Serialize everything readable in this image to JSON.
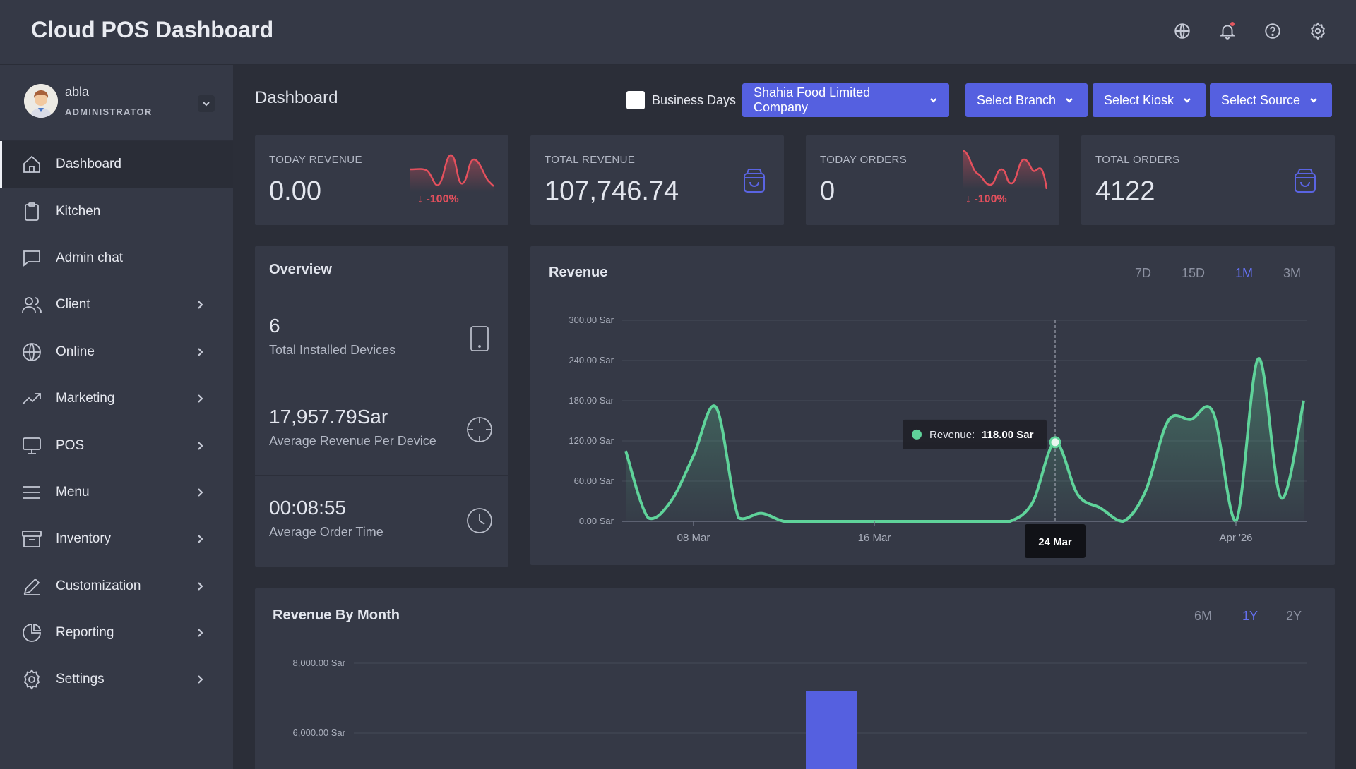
{
  "app": {
    "title": "Cloud POS Dashboard"
  },
  "top_icons": [
    "globe-icon",
    "bell-icon",
    "help-icon",
    "gear-icon"
  ],
  "user": {
    "name": "abla",
    "role": "ADMINISTRATOR"
  },
  "nav": [
    {
      "label": "Dashboard",
      "icon": "home-icon",
      "chevron": false,
      "active": true
    },
    {
      "label": "Kitchen",
      "icon": "clipboard-icon",
      "chevron": false
    },
    {
      "label": "Admin chat",
      "icon": "chat-icon",
      "chevron": false
    },
    {
      "label": "Client",
      "icon": "users-icon",
      "chevron": true
    },
    {
      "label": "Online",
      "icon": "globe-icon",
      "chevron": true
    },
    {
      "label": "Marketing",
      "icon": "trending-up-icon",
      "chevron": true
    },
    {
      "label": "POS",
      "icon": "monitor-icon",
      "chevron": true
    },
    {
      "label": "Menu",
      "icon": "menu-icon",
      "chevron": true
    },
    {
      "label": "Inventory",
      "icon": "archive-icon",
      "chevron": true
    },
    {
      "label": "Customization",
      "icon": "pen-icon",
      "chevron": true
    },
    {
      "label": "Reporting",
      "icon": "pie-chart-icon",
      "chevron": true
    },
    {
      "label": "Settings",
      "icon": "gear-icon",
      "chevron": true
    }
  ],
  "page": {
    "title": "Dashboard"
  },
  "filters": {
    "business_days": "Business Days",
    "company": "Shahia Food Limited Company",
    "branch": "Select Branch",
    "kiosk": "Select Kiosk",
    "source": "Select Source"
  },
  "stats": {
    "today_revenue": {
      "label": "TODAY REVENUE",
      "value": "0.00",
      "change": "-100%"
    },
    "total_revenue": {
      "label": "TOTAL REVENUE",
      "value": "107,746.74"
    },
    "today_orders": {
      "label": "TODAY ORDERS",
      "value": "0",
      "change": "-100%"
    },
    "total_orders": {
      "label": "TOTAL ORDERS",
      "value": "4122"
    }
  },
  "colors": {
    "accent": "#5560e0",
    "active_range": "#6470f0",
    "negative": "#e4505d",
    "revenue_line": "#5fd39a",
    "bar": "#5560e0"
  },
  "overview": {
    "title": "Overview",
    "rows": [
      {
        "value": "6",
        "label": "Total Installed Devices",
        "icon": "tablet-icon"
      },
      {
        "value": "17,957.79Sar",
        "label": "Average Revenue Per Device",
        "icon": "crosshair-icon"
      },
      {
        "value": "00:08:55",
        "label": "Average Order Time",
        "icon": "clock-icon"
      }
    ]
  },
  "revenue_chart": {
    "title": "Revenue",
    "ranges": [
      "7D",
      "15D",
      "1M",
      "3M"
    ],
    "active_range": "1M",
    "tooltip": {
      "label": "Revenue:",
      "value": "118.00 Sar",
      "x_label": "24 Mar"
    }
  },
  "month_chart": {
    "title": "Revenue By Month",
    "ranges": [
      "6M",
      "1Y",
      "2Y"
    ],
    "active_range": "1Y"
  },
  "chart_data": [
    {
      "type": "area",
      "title": "Revenue",
      "x_ticks": [
        "08 Mar",
        "16 Mar",
        "Apr '26"
      ],
      "y_ticks": [
        "0.00 Sar",
        "60.00 Sar",
        "120.00 Sar",
        "180.00 Sar",
        "240.00 Sar",
        "300.00 Sar"
      ],
      "ylim": [
        0,
        300
      ],
      "x": [
        "05 Mar",
        "06 Mar",
        "07 Mar",
        "08 Mar",
        "09 Mar",
        "10 Mar",
        "11 Mar",
        "12 Mar",
        "13 Mar",
        "14 Mar",
        "15 Mar",
        "16 Mar",
        "17 Mar",
        "18 Mar",
        "19 Mar",
        "20 Mar",
        "21 Mar",
        "22 Mar",
        "23 Mar",
        "24 Mar",
        "25 Mar",
        "26 Mar",
        "27 Mar",
        "28 Mar",
        "29 Mar",
        "30 Mar",
        "31 Mar",
        "01 Apr",
        "02 Apr",
        "03 Apr",
        "04 Apr"
      ],
      "series": [
        {
          "values": [
            105,
            5,
            30,
            98,
            170,
            5,
            12,
            0,
            0,
            0,
            0,
            0,
            0,
            0,
            0,
            0,
            0,
            0,
            28,
            118,
            40,
            20,
            0,
            45,
            150,
            152,
            162,
            0,
            243,
            35,
            180
          ]
        }
      ],
      "highlight": {
        "x": "24 Mar",
        "y": 118
      }
    },
    {
      "type": "bar",
      "title": "Revenue By Month",
      "y_ticks": [
        "8,000.00 Sar",
        "6,000.00 Sar"
      ],
      "ylim": [
        0,
        8000
      ],
      "series": [
        {
          "values": [
            7200
          ]
        }
      ]
    }
  ]
}
